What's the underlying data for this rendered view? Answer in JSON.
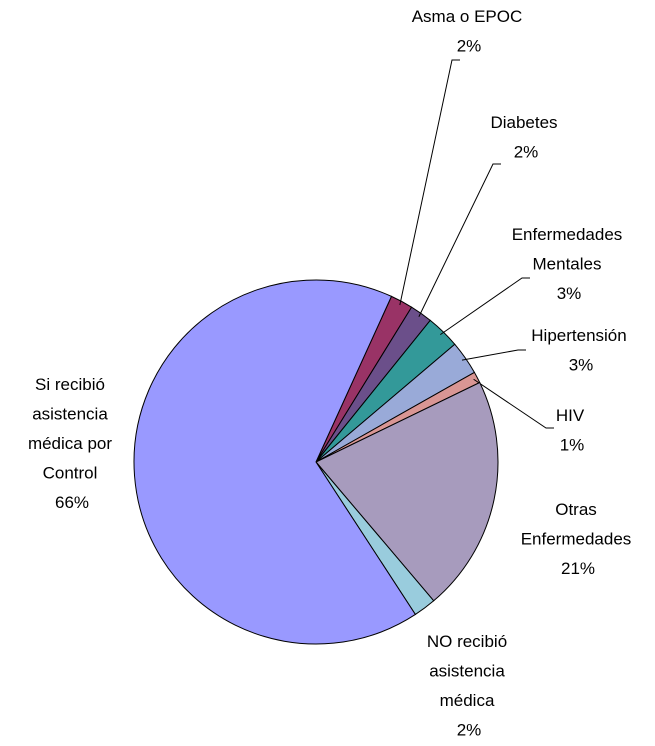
{
  "chart_data": {
    "type": "pie",
    "categories": [
      "Asma o EPOC",
      "Diabetes",
      "Enfermedades Mentales",
      "Hipertensión",
      "HIV",
      "Otras Enfermedades",
      "NO recibió asistencia médica",
      "Si recibió asistencia médica por Control"
    ],
    "values": [
      2,
      2,
      3,
      3,
      1,
      21,
      2,
      66
    ],
    "value_labels": [
      "2%",
      "2%",
      "3%",
      "3%",
      "1%",
      "21%",
      "2%",
      "66%"
    ],
    "colors": [
      "#993366",
      "#6b4f8a",
      "#339999",
      "#99aad8",
      "#d99694",
      "#a79bbd",
      "#99ccdd",
      "#9999ff"
    ]
  }
}
